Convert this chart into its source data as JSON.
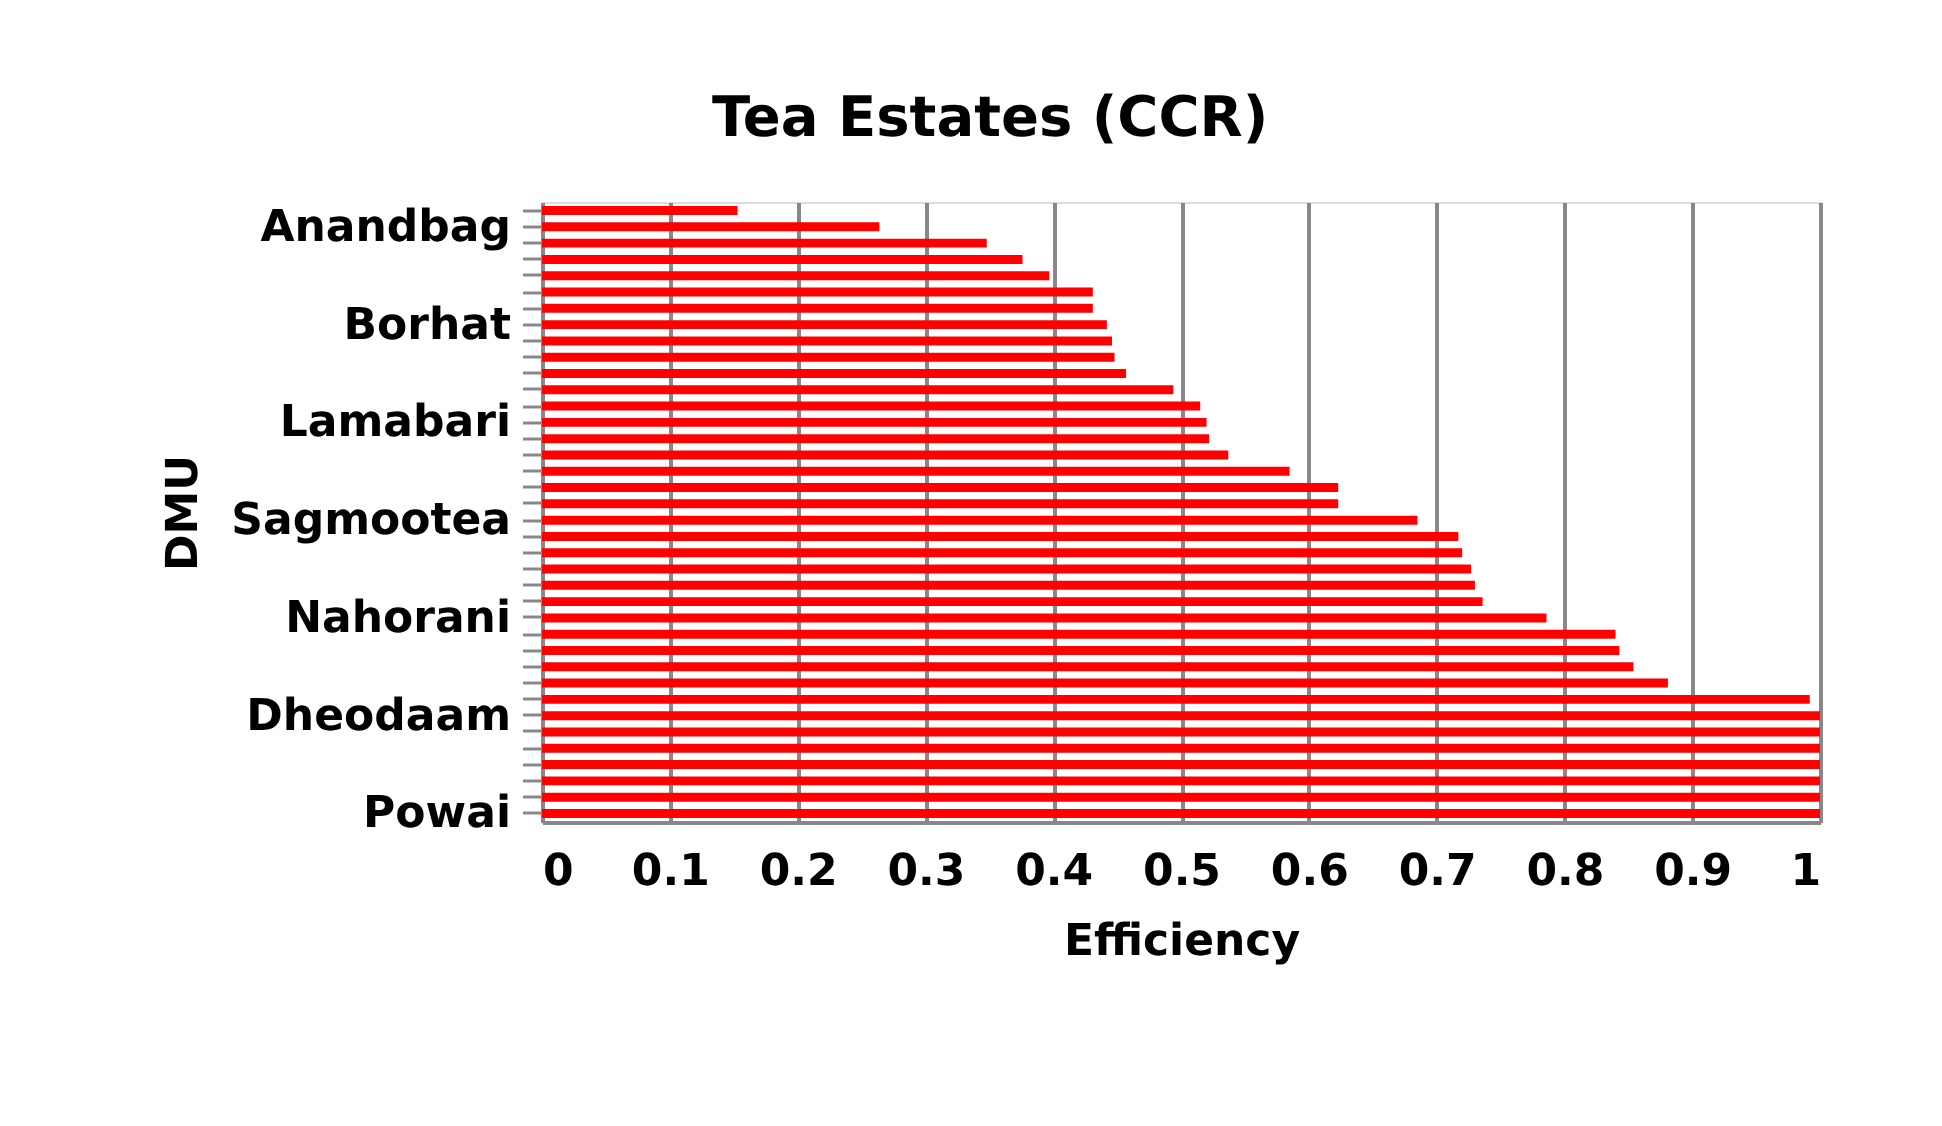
{
  "chart_data": {
    "type": "bar",
    "orientation": "horizontal",
    "title": "Tea Estates (CCR)",
    "xlabel": "Efficiency",
    "ylabel": "DMU",
    "categories": [
      null,
      "Anandbag",
      null,
      null,
      null,
      null,
      null,
      "Borhat",
      null,
      null,
      null,
      null,
      null,
      "Lamabari",
      null,
      null,
      null,
      null,
      null,
      "Sagmootea",
      null,
      null,
      null,
      null,
      null,
      "Nahorani",
      null,
      null,
      null,
      null,
      null,
      "Dheodaam",
      null,
      null,
      null,
      null,
      null,
      "Powai"
    ],
    "values": [
      0.153,
      0.264,
      0.348,
      0.376,
      0.397,
      0.431,
      0.431,
      0.442,
      0.446,
      0.448,
      0.457,
      0.494,
      0.515,
      0.52,
      0.522,
      0.537,
      0.585,
      0.623,
      0.623,
      0.685,
      0.717,
      0.72,
      0.727,
      0.73,
      0.736,
      0.786,
      0.84,
      0.843,
      0.854,
      0.881,
      0.992,
      1,
      1,
      1,
      1,
      1,
      1,
      1
    ],
    "color": "#ff0000",
    "xlim": [
      0,
      1
    ],
    "xticks": [
      0,
      0.1,
      0.2,
      0.3,
      0.4,
      0.5,
      0.6,
      0.7,
      0.8,
      0.9,
      1
    ],
    "grid": "x"
  }
}
